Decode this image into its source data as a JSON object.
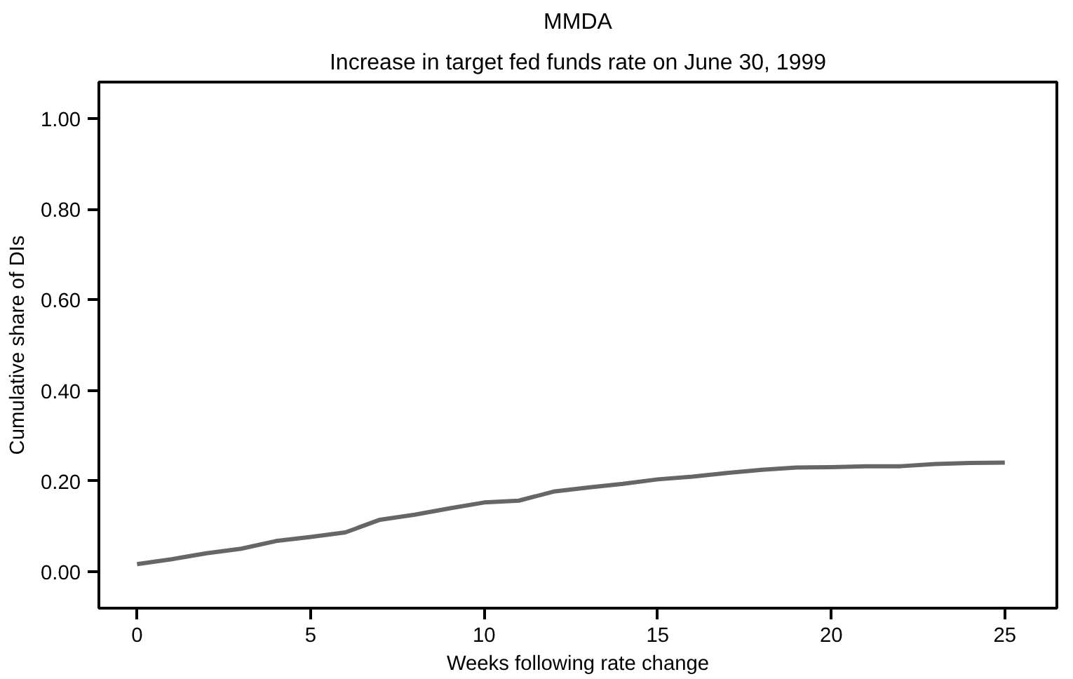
{
  "chart_data": {
    "type": "line",
    "title": "MMDA",
    "subtitle": "Increase in target fed funds rate on June 30, 1999",
    "xlabel": "Weeks following rate change",
    "ylabel": "Cumulative share of DIs",
    "x": [
      0,
      1,
      2,
      3,
      4,
      5,
      6,
      7,
      8,
      9,
      10,
      11,
      12,
      13,
      14,
      15,
      16,
      17,
      18,
      19,
      20,
      21,
      22,
      23,
      24,
      25
    ],
    "series": [
      {
        "color": "#666666",
        "values": [
          0.017,
          0.028,
          0.041,
          0.051,
          0.068,
          0.077,
          0.087,
          0.115,
          0.126,
          0.14,
          0.153,
          0.157,
          0.177,
          0.186,
          0.194,
          0.204,
          0.21,
          0.218,
          0.225,
          0.23,
          0.231,
          0.233,
          0.233,
          0.238,
          0.24,
          0.241
        ]
      }
    ],
    "xlim": [
      -1.1,
      26.5
    ],
    "ylim": [
      -0.08,
      1.08
    ],
    "xticks": [
      0,
      5,
      10,
      15,
      20,
      25
    ],
    "yticks": [
      {
        "value": 0,
        "label": "0.00"
      },
      {
        "value": 0.2,
        "label": "0.20"
      },
      {
        "value": 0.4,
        "label": "0.40"
      },
      {
        "value": 0.6,
        "label": "0.60"
      },
      {
        "value": 0.8,
        "label": "0.80"
      },
      {
        "value": 1,
        "label": "1.00"
      }
    ],
    "grid": false,
    "line_style": "solid"
  }
}
